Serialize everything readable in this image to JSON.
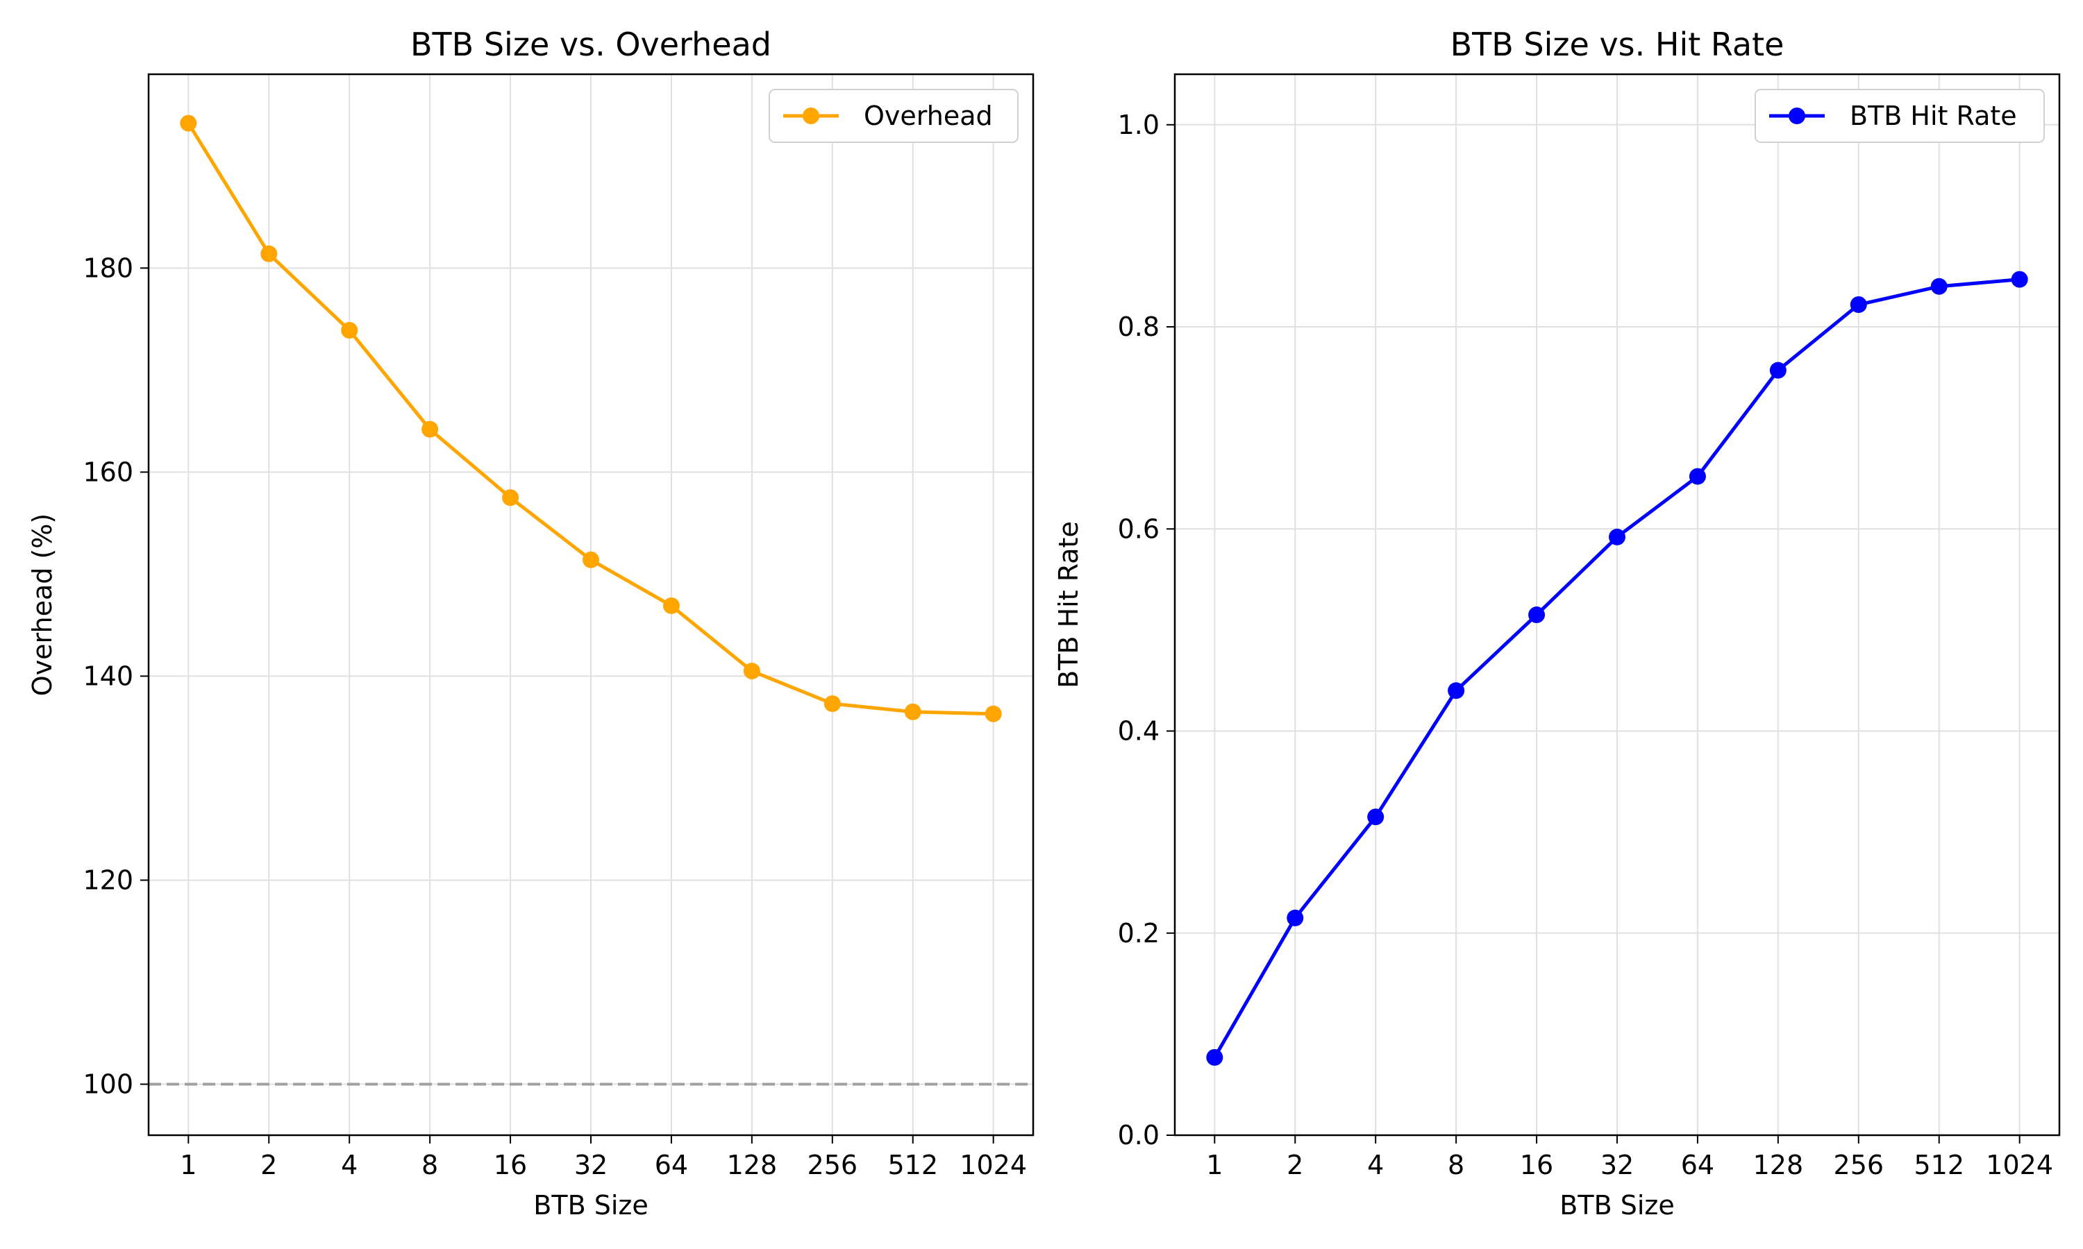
{
  "chart_data": [
    {
      "type": "line",
      "title": "BTB Size vs. Overhead",
      "xlabel": "BTB Size",
      "ylabel": "Overhead (%)",
      "categories": [
        "1",
        "2",
        "4",
        "8",
        "16",
        "32",
        "64",
        "128",
        "256",
        "512",
        "1024"
      ],
      "ylim": [
        95,
        199
      ],
      "yticks": [
        100,
        120,
        140,
        160,
        180
      ],
      "grid": true,
      "legend_position": "top-right",
      "reference_line": {
        "y": 100,
        "style": "dashed",
        "color": "#a0a0a0"
      },
      "series": [
        {
          "name": "Overhead",
          "color": "#ffa500",
          "values": [
            194.2,
            181.4,
            173.9,
            164.2,
            157.5,
            151.4,
            146.9,
            140.5,
            137.3,
            136.5,
            136.3
          ]
        }
      ]
    },
    {
      "type": "line",
      "title": "BTB Size vs. Hit Rate",
      "xlabel": "BTB Size",
      "ylabel": "BTB Hit Rate",
      "categories": [
        "1",
        "2",
        "4",
        "8",
        "16",
        "32",
        "64",
        "128",
        "256",
        "512",
        "1024"
      ],
      "ylim": [
        0,
        1.05
      ],
      "yticks": [
        "0.0",
        "0.2",
        "0.4",
        "0.6",
        "0.8",
        "1.0"
      ],
      "grid": true,
      "legend_position": "top-right",
      "series": [
        {
          "name": "BTB Hit Rate",
          "color": "#0000ff",
          "values": [
            0.077,
            0.215,
            0.315,
            0.44,
            0.515,
            0.592,
            0.652,
            0.757,
            0.822,
            0.84,
            0.847
          ]
        }
      ]
    }
  ]
}
